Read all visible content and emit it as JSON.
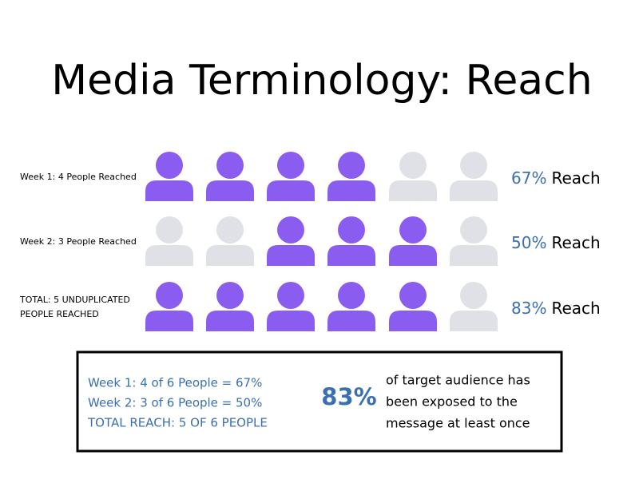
{
  "title": "Media Terminology: Reach",
  "colors": {
    "reached": "#8a5cf0",
    "not_reached": "#dfe1e6",
    "accent": "#3a6fb0"
  },
  "rows": [
    {
      "label": [
        "Week 1: 4 People Reached"
      ],
      "reached": [
        true,
        true,
        true,
        true,
        false,
        false
      ],
      "percent": "67%",
      "suffix": "Reach"
    },
    {
      "label": [
        "Week 2: 3 People Reached"
      ],
      "reached": [
        false,
        false,
        true,
        true,
        true,
        false
      ],
      "percent": "50%",
      "suffix": "Reach"
    },
    {
      "label": [
        "TOTAL: 5 UNDUPLICATED",
        "PEOPLE REACHED"
      ],
      "reached": [
        true,
        true,
        true,
        true,
        true,
        false
      ],
      "percent": "83%",
      "suffix": "Reach"
    }
  ],
  "summary": {
    "left": [
      "Week 1: 4 of 6 People = 67%",
      "Week 2: 3 of 6 People = 50%",
      "TOTAL REACH: 5 OF 6 PEOPLE"
    ],
    "highlight": "83%",
    "right": [
      "of target audience has",
      "been exposed to the",
      "message at least once"
    ]
  }
}
